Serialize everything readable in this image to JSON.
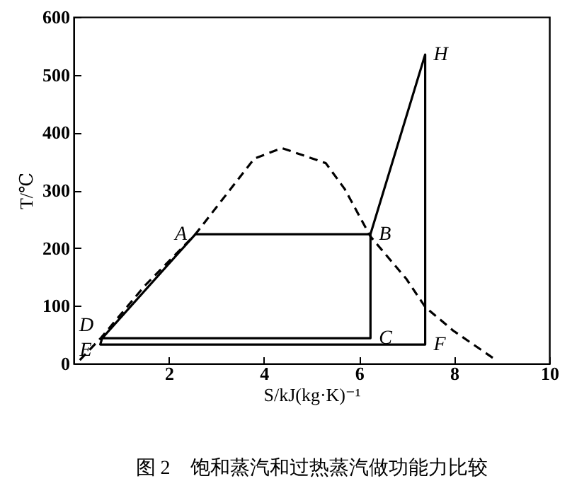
{
  "chart_data": {
    "type": "line",
    "title": "图 2　饱和蒸汽和过热蒸汽做功能力比较",
    "xlabel": "S/kJ(kg·K)⁻¹",
    "ylabel": "T/℃",
    "xlim": [
      0,
      10
    ],
    "xticks": [
      2,
      4,
      6,
      8,
      10
    ],
    "ylim": [
      0,
      600
    ],
    "yticks": [
      0,
      100,
      200,
      300,
      400,
      500,
      600
    ],
    "grid": false,
    "marker": "none",
    "series": [
      {
        "color": "#000000",
        "line_style": "dashed",
        "x": [
          0.13,
          0.58,
          1.5,
          2.56,
          3.8,
          4.38,
          5.3,
          5.7,
          6.24,
          6.99,
          7.39,
          7.98,
          8.88
        ],
        "values": [
          6,
          45,
          135,
          224,
          355,
          373,
          347,
          302,
          220,
          147,
          98,
          57,
          6
        ]
      },
      {
        "color": "#000000",
        "line_style": "solid",
        "x": [
          0.6,
          6.24,
          6.24,
          2.56,
          0.6,
          0.56,
          7.39,
          7.39,
          6.24
        ],
        "values": [
          44,
          44,
          224,
          224,
          44,
          33,
          33,
          535,
          224
        ]
      }
    ],
    "annotations": [
      {
        "text": "A",
        "x": 2.56,
        "y": 224
      },
      {
        "text": "B",
        "x": 6.24,
        "y": 224
      },
      {
        "text": "C",
        "x": 6.24,
        "y": 44
      },
      {
        "text": "D",
        "x": 0.6,
        "y": 44
      },
      {
        "text": "E",
        "x": 0.56,
        "y": 33
      },
      {
        "text": "F",
        "x": 7.39,
        "y": 33
      },
      {
        "text": "H",
        "x": 7.39,
        "y": 535
      }
    ]
  }
}
